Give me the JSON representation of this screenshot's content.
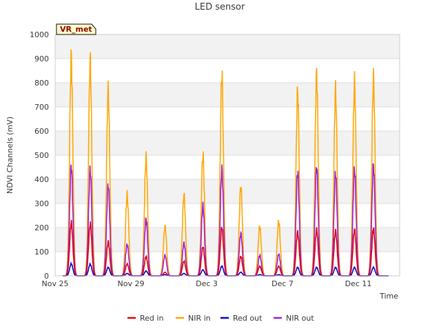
{
  "chart_data": {
    "type": "line",
    "title": "LED sensor",
    "xlabel": "Time",
    "ylabel": "NDVI Channels (mV)",
    "ylim": [
      0,
      1000
    ],
    "yticks": [
      0,
      100,
      200,
      300,
      400,
      500,
      600,
      700,
      800,
      900,
      1000
    ],
    "xlim": [
      0,
      20
    ],
    "xticks": [
      {
        "x": 0,
        "label": "Nov 25"
      },
      {
        "x": 4,
        "label": "Nov 29"
      },
      {
        "x": 8,
        "label": "Dec 3"
      },
      {
        "x": 12,
        "label": "Dec 7"
      },
      {
        "x": 16,
        "label": "Dec 11"
      }
    ],
    "grid": true,
    "badge": "VR_met",
    "legend_position": "bottom-center",
    "series": [
      {
        "name": "Red in",
        "color": "#dd0000",
        "peaks": [
          220,
          215,
          140,
          50,
          80,
          15,
          60,
          120,
          200,
          80,
          40,
          40,
          180,
          190,
          185,
          190,
          195
        ]
      },
      {
        "name": "NIR in",
        "color": "#ffa500",
        "peaks": [
          905,
          890,
          770,
          335,
          490,
          205,
          335,
          500,
          835,
          370,
          205,
          225,
          765,
          835,
          770,
          800,
          820
        ]
      },
      {
        "name": "Red out",
        "color": "#0000cc",
        "peaks": [
          50,
          48,
          35,
          10,
          20,
          5,
          10,
          25,
          40,
          15,
          5,
          5,
          35,
          35,
          35,
          35,
          35
        ]
      },
      {
        "name": "NIR out",
        "color": "#9a1be0",
        "peaks": [
          455,
          440,
          375,
          130,
          235,
          85,
          135,
          290,
          440,
          175,
          85,
          90,
          430,
          450,
          425,
          440,
          455
        ]
      }
    ],
    "peak_days": [
      0.85,
      1.85,
      2.8,
      3.8,
      4.8,
      5.8,
      6.8,
      7.8,
      8.8,
      9.8,
      10.8,
      11.8,
      12.8,
      13.8,
      14.8,
      15.8,
      16.8
    ]
  }
}
